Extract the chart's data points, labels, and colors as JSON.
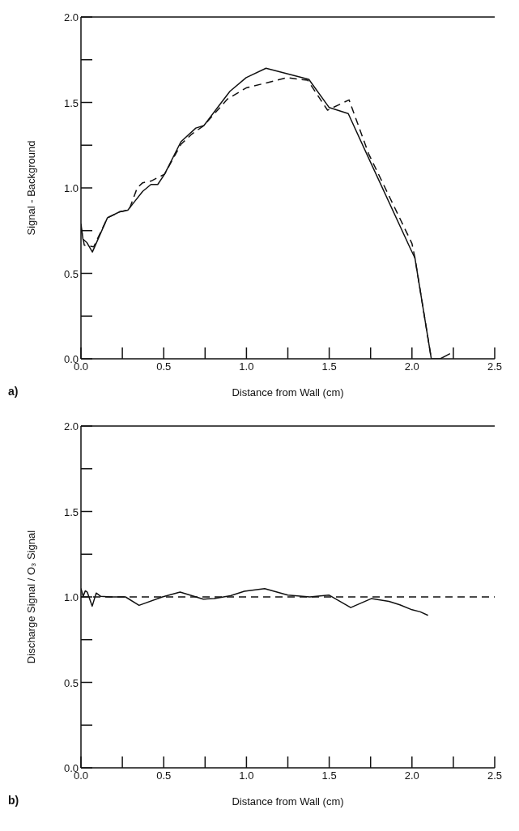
{
  "chart_data": [
    {
      "type": "line",
      "xlabel": "Distance from Wall (cm)",
      "ylabel": "Signal - Background",
      "annotations": [
        "a)"
      ],
      "xlim": [
        0,
        2.5
      ],
      "ylim": [
        0,
        2
      ],
      "xticks": [
        {
          "value": 0,
          "label": "0.0"
        },
        {
          "value": 0.25,
          "label": null
        },
        {
          "value": 0.5,
          "label": "0.5"
        },
        {
          "value": 0.75,
          "label": null
        },
        {
          "value": 1,
          "label": "1.0"
        },
        {
          "value": 1.25,
          "label": null
        },
        {
          "value": 1.5,
          "label": "1.5"
        },
        {
          "value": 1.75,
          "label": null
        },
        {
          "value": 2,
          "label": "2.0"
        },
        {
          "value": 2.25,
          "label": null
        },
        {
          "value": 2.5,
          "label": "2.5"
        }
      ],
      "yticks": [
        {
          "value": 0,
          "label": "0.0"
        },
        {
          "value": 0.25,
          "label": null
        },
        {
          "value": 0.5,
          "label": "0.5"
        },
        {
          "value": 0.75,
          "label": null
        },
        {
          "value": 1,
          "label": "1.0"
        },
        {
          "value": 1.25,
          "label": null
        },
        {
          "value": 1.5,
          "label": "1.5"
        },
        {
          "value": 1.75,
          "label": null
        },
        {
          "value": 2,
          "label": "2.0"
        }
      ],
      "grid": false,
      "marker": "none",
      "series": [
        {
          "color": "#111111",
          "line_style": "solid",
          "x": [
            0,
            0.012,
            0.036,
            0.069,
            0.16,
            0.234,
            0.283,
            0.324,
            0.373,
            0.423,
            0.464,
            0.505,
            0.604,
            0.694,
            0.743,
            0.817,
            0.9,
            0.998,
            1.118,
            1.377,
            1.5,
            1.615,
            1.738,
            1.993,
            2.018,
            2.117,
            2.171,
            2.23
          ],
          "values": [
            0.79,
            0.7,
            0.68,
            0.625,
            0.825,
            0.86,
            0.87,
            0.92,
            0.98,
            1.02,
            1.02,
            1.08,
            1.27,
            1.35,
            1.365,
            1.46,
            1.565,
            1.645,
            1.7,
            1.635,
            1.47,
            1.435,
            1.175,
            0.64,
            0.59,
            0,
            0,
            0.03
          ]
        },
        {
          "color": "#111111",
          "line_style": "dashed",
          "x": [
            0,
            0.02,
            0.077,
            0.16,
            0.234,
            0.29,
            0.34,
            0.373,
            0.423,
            0.505,
            0.604,
            0.67,
            0.743,
            0.885,
            0.998,
            1.245,
            1.37,
            1.49,
            1.62,
            1.738,
            2.0,
            2.018,
            2.117
          ],
          "values": [
            0.77,
            0.665,
            0.655,
            0.825,
            0.86,
            0.87,
            1.0,
            1.03,
            1.04,
            1.08,
            1.255,
            1.315,
            1.365,
            1.52,
            1.585,
            1.645,
            1.63,
            1.455,
            1.515,
            1.2,
            0.675,
            0.59,
            0
          ]
        }
      ]
    },
    {
      "type": "line",
      "xlabel": "Distance from Wall (cm)",
      "ylabel": "Discharge Signal / O₃ Signal",
      "annotations": [
        "b)"
      ],
      "xlim": [
        0,
        2.5
      ],
      "ylim": [
        0,
        2
      ],
      "xticks": [
        {
          "value": 0,
          "label": "0.0"
        },
        {
          "value": 0.25,
          "label": null
        },
        {
          "value": 0.5,
          "label": "0.5"
        },
        {
          "value": 0.75,
          "label": null
        },
        {
          "value": 1,
          "label": "1.0"
        },
        {
          "value": 1.25,
          "label": null
        },
        {
          "value": 1.5,
          "label": "1.5"
        },
        {
          "value": 1.75,
          "label": null
        },
        {
          "value": 2,
          "label": "2.0"
        },
        {
          "value": 2.25,
          "label": null
        },
        {
          "value": 2.5,
          "label": "2.5"
        }
      ],
      "yticks": [
        {
          "value": 0,
          "label": "0.0"
        },
        {
          "value": 0.25,
          "label": null
        },
        {
          "value": 0.5,
          "label": "0.5"
        },
        {
          "value": 0.75,
          "label": null
        },
        {
          "value": 1,
          "label": "1.0"
        },
        {
          "value": 1.25,
          "label": null
        },
        {
          "value": 1.5,
          "label": "1.5"
        },
        {
          "value": 1.75,
          "label": null
        },
        {
          "value": 2,
          "label": "2.0"
        }
      ],
      "grid": false,
      "marker": "none",
      "ref_lines": [
        {
          "axis": "y",
          "value": 1.0,
          "label": null,
          "color": "#111111",
          "line_style": "dashed"
        }
      ],
      "series": [
        {
          "color": "#111111",
          "line_style": "solid",
          "x": [
            0,
            0.013,
            0.026,
            0.038,
            0.068,
            0.092,
            0.12,
            0.178,
            0.269,
            0.351,
            0.492,
            0.599,
            0.739,
            0.805,
            0.904,
            0.987,
            1.11,
            1.25,
            1.383,
            1.498,
            1.63,
            1.754,
            1.861,
            1.927,
            2.0,
            2.05,
            2.097
          ],
          "values": [
            1.05,
            1.003,
            1.036,
            1.028,
            0.946,
            1.023,
            1.003,
            1.0,
            1.0,
            0.951,
            1.0,
            1.028,
            0.987,
            0.99,
            1.007,
            1.033,
            1.049,
            1.011,
            1.0,
            1.011,
            0.938,
            0.99,
            0.974,
            0.954,
            0.925,
            0.913,
            0.892
          ]
        }
      ]
    }
  ]
}
